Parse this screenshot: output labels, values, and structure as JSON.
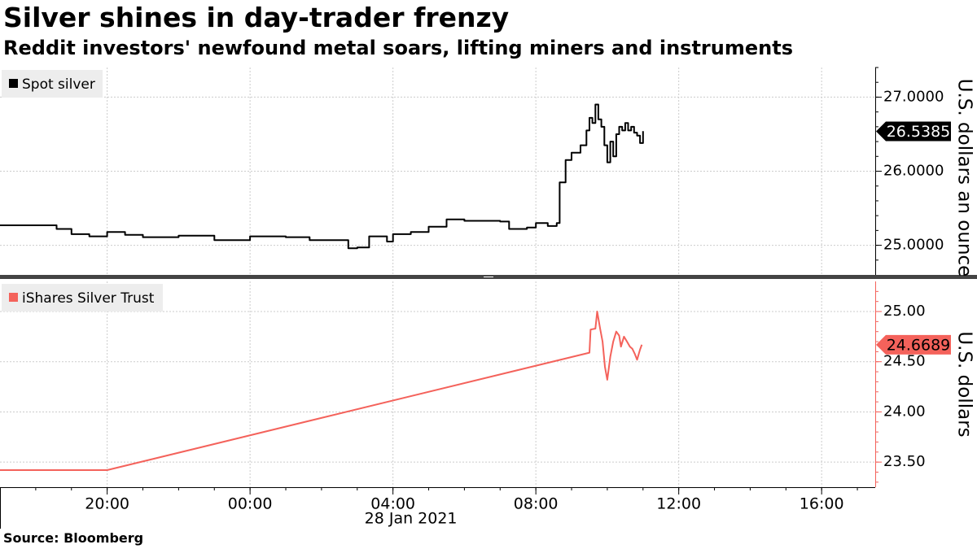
{
  "title": "Silver shines in day-trader frenzy",
  "subtitle": "Reddit investors' newfound metal soars, lifting miners and instruments",
  "source": "Source: Bloomberg",
  "colors": {
    "spot_silver": "#000000",
    "ishares": "#f4625b",
    "grid": "#cccccc",
    "axis": "#000000",
    "panel_divider": "#444444"
  },
  "chart_data": [
    {
      "type": "line",
      "legend": "Spot silver",
      "legend_position": "top-left",
      "ylabel": "U.S. dollars an ounce",
      "ylim": [
        24.6,
        27.4
      ],
      "yticks": [
        25.0,
        26.0,
        27.0
      ],
      "ytick_labels": [
        "25.0000",
        "26.0000",
        "27.0000"
      ],
      "last_value_label": "26.5385",
      "last_value": 26.5385,
      "grid": true,
      "series": [
        {
          "name": "Spot silver",
          "points": [
            [
              "2021-01-27T17:00",
              25.27
            ],
            [
              "2021-01-27T18:30",
              25.27
            ],
            [
              "2021-01-27T18:35",
              25.22
            ],
            [
              "2021-01-27T19:00",
              25.15
            ],
            [
              "2021-01-27T19:30",
              25.12
            ],
            [
              "2021-01-27T20:00",
              25.18
            ],
            [
              "2021-01-27T20:30",
              25.14
            ],
            [
              "2021-01-27T21:00",
              25.11
            ],
            [
              "2021-01-27T22:00",
              25.13
            ],
            [
              "2021-01-27T23:00",
              25.07
            ],
            [
              "2021-01-28T00:00",
              25.12
            ],
            [
              "2021-01-28T01:00",
              25.11
            ],
            [
              "2021-01-28T01:40",
              25.07
            ],
            [
              "2021-01-28T02:20",
              25.07
            ],
            [
              "2021-01-28T02:45",
              24.96
            ],
            [
              "2021-01-28T03:00",
              24.97
            ],
            [
              "2021-01-28T03:20",
              25.12
            ],
            [
              "2021-01-28T03:50",
              25.05
            ],
            [
              "2021-01-28T04:00",
              25.15
            ],
            [
              "2021-01-28T04:30",
              25.18
            ],
            [
              "2021-01-28T05:00",
              25.25
            ],
            [
              "2021-01-28T05:30",
              25.35
            ],
            [
              "2021-01-28T06:00",
              25.33
            ],
            [
              "2021-01-28T07:00",
              25.32
            ],
            [
              "2021-01-28T07:15",
              25.22
            ],
            [
              "2021-01-28T07:45",
              25.24
            ],
            [
              "2021-01-28T08:00",
              25.3
            ],
            [
              "2021-01-28T08:20",
              25.26
            ],
            [
              "2021-01-28T08:35",
              25.3
            ],
            [
              "2021-01-28T08:40",
              25.85
            ],
            [
              "2021-01-28T08:50",
              26.15
            ],
            [
              "2021-01-28T09:00",
              26.25
            ],
            [
              "2021-01-28T09:15",
              26.35
            ],
            [
              "2021-01-28T09:25",
              26.55
            ],
            [
              "2021-01-28T09:30",
              26.72
            ],
            [
              "2021-01-28T09:35",
              26.65
            ],
            [
              "2021-01-28T09:40",
              26.9
            ],
            [
              "2021-01-28T09:45",
              26.7
            ],
            [
              "2021-01-28T09:50",
              26.6
            ],
            [
              "2021-01-28T09:55",
              26.35
            ],
            [
              "2021-01-28T10:00",
              26.12
            ],
            [
              "2021-01-28T10:05",
              26.4
            ],
            [
              "2021-01-28T10:10",
              26.2
            ],
            [
              "2021-01-28T10:15",
              26.5
            ],
            [
              "2021-01-28T10:20",
              26.6
            ],
            [
              "2021-01-28T10:25",
              26.55
            ],
            [
              "2021-01-28T10:30",
              26.65
            ],
            [
              "2021-01-28T10:35",
              26.55
            ],
            [
              "2021-01-28T10:40",
              26.6
            ],
            [
              "2021-01-28T10:45",
              26.52
            ],
            [
              "2021-01-28T10:50",
              26.48
            ],
            [
              "2021-01-28T10:55",
              26.38
            ],
            [
              "2021-01-28T11:00",
              26.54
            ]
          ]
        }
      ]
    },
    {
      "type": "line",
      "legend": "iShares Silver Trust",
      "legend_position": "top-left",
      "ylabel": "U.S. dollars",
      "ylim": [
        23.25,
        25.3
      ],
      "yticks": [
        23.5,
        24.0,
        24.5,
        25.0
      ],
      "ytick_labels": [
        "23.50",
        "24.00",
        "24.50",
        "25.00"
      ],
      "last_value_label": "24.6689",
      "last_value": 24.6689,
      "grid": true,
      "series": [
        {
          "name": "iShares Silver Trust",
          "points": [
            [
              "2021-01-27T17:00",
              23.42
            ],
            [
              "2021-01-27T20:00",
              23.42
            ],
            [
              "2021-01-28T09:30",
              24.59
            ],
            [
              "2021-01-28T09:32",
              24.82
            ],
            [
              "2021-01-28T09:40",
              24.83
            ],
            [
              "2021-01-28T09:43",
              25.0
            ],
            [
              "2021-01-28T09:48",
              24.83
            ],
            [
              "2021-01-28T09:52",
              24.7
            ],
            [
              "2021-01-28T09:56",
              24.45
            ],
            [
              "2021-01-28T10:00",
              24.32
            ],
            [
              "2021-01-28T10:05",
              24.55
            ],
            [
              "2021-01-28T10:10",
              24.7
            ],
            [
              "2021-01-28T10:15",
              24.8
            ],
            [
              "2021-01-28T10:20",
              24.76
            ],
            [
              "2021-01-28T10:23",
              24.65
            ],
            [
              "2021-01-28T10:28",
              24.75
            ],
            [
              "2021-01-28T10:33",
              24.7
            ],
            [
              "2021-01-28T10:38",
              24.65
            ],
            [
              "2021-01-28T10:42",
              24.63
            ],
            [
              "2021-01-28T10:46",
              24.58
            ],
            [
              "2021-01-28T10:50",
              24.52
            ],
            [
              "2021-01-28T10:55",
              24.62
            ],
            [
              "2021-01-28T10:58",
              24.67
            ]
          ]
        }
      ]
    }
  ],
  "x_axis": {
    "tick_labels": [
      "20:00",
      "00:00",
      "04:00",
      "08:00",
      "12:00",
      "16:00"
    ],
    "tick_times": [
      "2021-01-27T20:00",
      "2021-01-28T00:00",
      "2021-01-28T04:00",
      "2021-01-28T08:00",
      "2021-01-28T12:00",
      "2021-01-28T16:00"
    ],
    "date_label": "28 Jan 2021",
    "range": [
      "2021-01-27T17:00",
      "2021-01-28T17:30"
    ]
  }
}
